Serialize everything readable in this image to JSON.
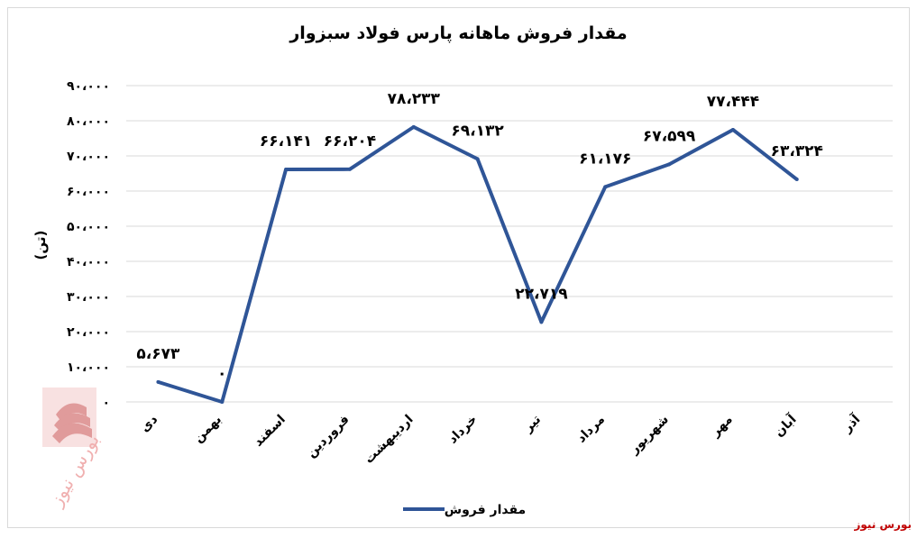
{
  "chart_data": {
    "type": "line",
    "title": "مقدار فروش ماهانه پارس فولاد سبزوار",
    "ylabel": "(تن)",
    "xlabel": "",
    "categories": [
      "دی",
      "بهمن",
      "اسفند",
      "فروردین",
      "اردیبهشت",
      "خرداد",
      "تیر",
      "مرداد",
      "شهریور",
      "مهر",
      "آبان",
      "آذر"
    ],
    "series": [
      {
        "name": "مقدار فروش",
        "values": [
          5673,
          0,
          66141,
          66204,
          78233,
          69132,
          22719,
          61176,
          67599,
          77444,
          63324,
          null
        ],
        "labels": [
          "۵،۶۷۳",
          "۰",
          "۶۶،۱۴۱",
          "۶۶،۲۰۴",
          "۷۸،۲۳۳",
          "۶۹،۱۳۲",
          "۲۲،۷۱۹",
          "۶۱،۱۷۶",
          "۶۷،۵۹۹",
          "۷۷،۴۴۴",
          "۶۳،۳۲۴",
          ""
        ]
      }
    ],
    "ylim": [
      0,
      90000
    ],
    "yticks": [
      0,
      10000,
      20000,
      30000,
      40000,
      50000,
      60000,
      70000,
      80000,
      90000
    ],
    "ytick_labels": [
      "۰",
      "۱۰،۰۰۰",
      "۲۰،۰۰۰",
      "۳۰،۰۰۰",
      "۴۰،۰۰۰",
      "۵۰،۰۰۰",
      "۶۰،۰۰۰",
      "۷۰،۰۰۰",
      "۸۰،۰۰۰",
      "۹۰،۰۰۰"
    ],
    "grid": true,
    "legend": "bottom",
    "line_color": "#2f5597"
  },
  "watermark_text": "بورس نیوز",
  "source_credit": "بورس نیوز"
}
